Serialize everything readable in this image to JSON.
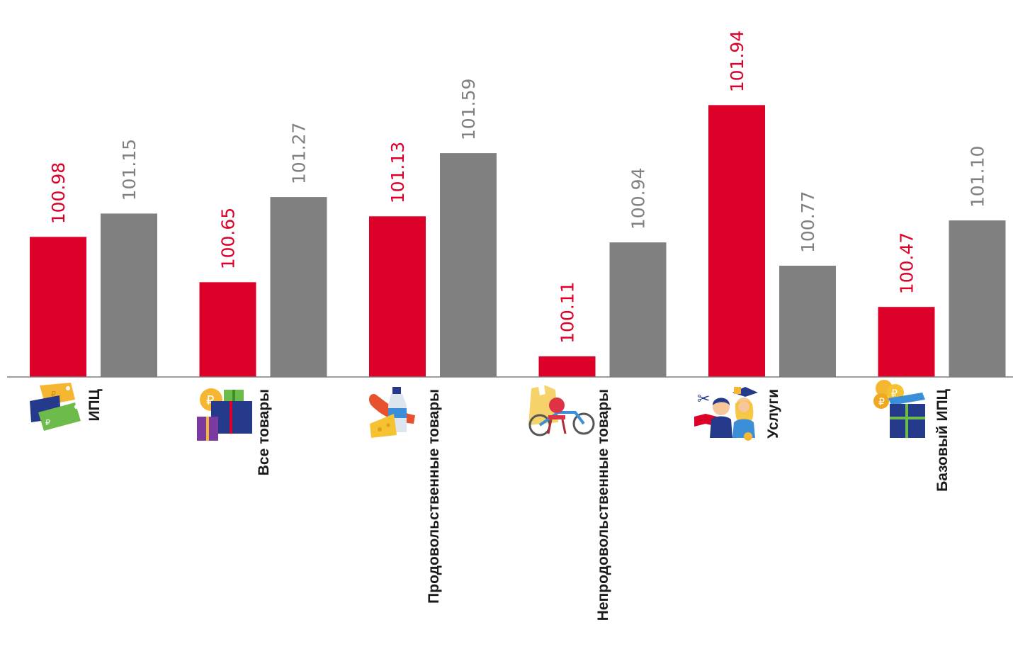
{
  "chart_data": {
    "type": "bar",
    "categories": [
      "ИПЦ",
      "Все товары",
      "Продовольственные товары",
      "Непродовольственные товары",
      "Услуги",
      "Базовый ИПЦ"
    ],
    "category_icons": [
      "price-tags-icon",
      "gift-boxes-icon",
      "groceries-icon",
      "clothes-bicycle-icon",
      "services-people-icon",
      "base-cpi-box-icon"
    ],
    "series": [
      {
        "values": [
          100.98,
          100.65,
          101.13,
          100.11,
          101.94,
          100.47
        ],
        "color": "#dd0028",
        "label_color": "#dd0028"
      },
      {
        "values": [
          101.15,
          101.27,
          101.59,
          100.94,
          100.77,
          101.1
        ],
        "color": "#808080",
        "label_color": "#808080"
      }
    ],
    "ylim": [
      99.96,
      102.5
    ],
    "grid": false,
    "legend": "none",
    "data_labels": "rotated-vertical"
  }
}
